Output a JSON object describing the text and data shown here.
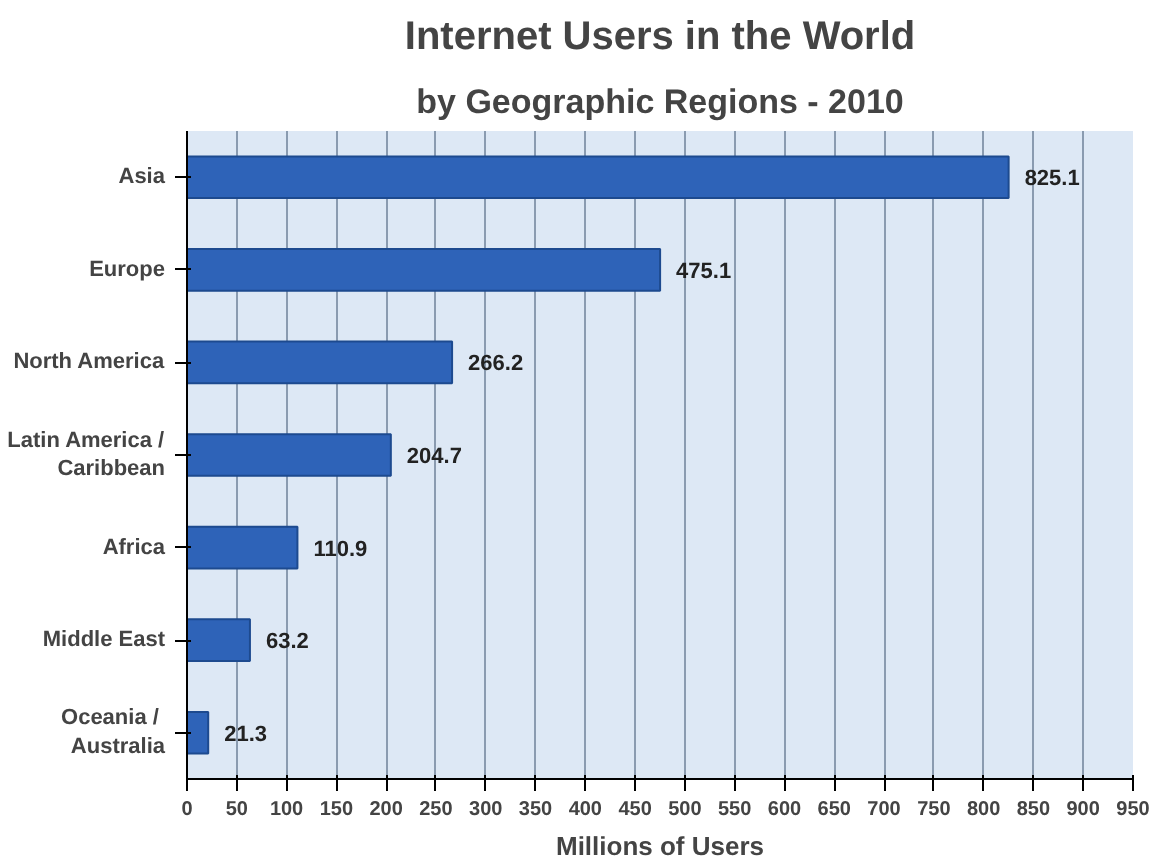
{
  "chart_data": {
    "type": "bar",
    "orientation": "horizontal",
    "title": "Internet Users in the World",
    "subtitle": "by Geographic Regions - 2010",
    "xlabel": "Millions of Users",
    "categories": [
      "Asia",
      "Europe",
      "North America",
      "Latin America /\nCaribbean",
      "Africa",
      "Middle East",
      "Oceania  /\nAustralia"
    ],
    "values": [
      825.1,
      475.1,
      266.2,
      204.7,
      110.9,
      63.2,
      21.3
    ],
    "color": "#2e63b8",
    "xlim": [
      0,
      950
    ],
    "xticks": [
      0,
      50,
      100,
      150,
      200,
      250,
      300,
      350,
      400,
      450,
      500,
      550,
      600,
      650,
      700,
      750,
      800,
      850,
      900,
      950
    ],
    "grid": "x",
    "data_labels": true
  }
}
